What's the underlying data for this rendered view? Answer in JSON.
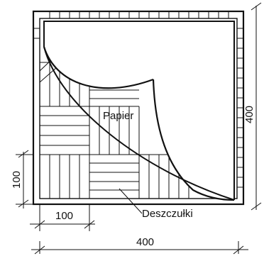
{
  "labels": {
    "paper": "Papier",
    "strips": "Deszczułki"
  },
  "dimensions": {
    "height_total": "400",
    "height_module": "100",
    "width_module": "100",
    "width_total": "400"
  },
  "colors": {
    "ink": "#111111",
    "paper_fill": "#ffffff"
  }
}
